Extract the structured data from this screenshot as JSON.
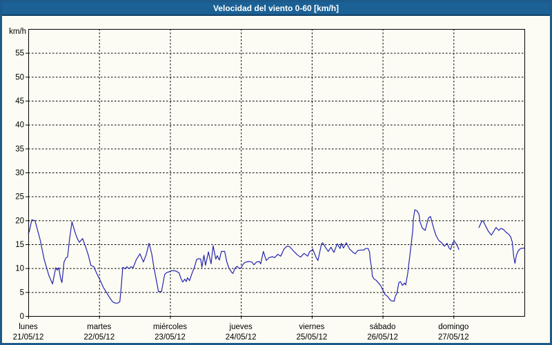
{
  "window": {
    "title": "Velocidad del viento 0-60 [km/h]"
  },
  "colors": {
    "frame_border": "#1d5a8a",
    "title_bg": "#1b6195",
    "title_text": "#ffffff",
    "background": "#fcfcf4",
    "grid": "#000000",
    "axis": "#000000",
    "line": "#2323b2"
  },
  "chart_data": {
    "type": "line",
    "title": "Velocidad del viento 0-60 [km/h]",
    "xlabel": "",
    "ylabel": "km/h",
    "ylim": [
      0,
      60
    ],
    "xlim_hours": [
      0,
      168
    ],
    "grid": "dashed",
    "legend_position": "none",
    "y_ticks": [
      0,
      5,
      10,
      15,
      20,
      25,
      30,
      35,
      40,
      45,
      50,
      55
    ],
    "x_ticks": [
      {
        "hour": 0,
        "day": "lunes",
        "date": "21/05/12"
      },
      {
        "hour": 24,
        "day": "martes",
        "date": "22/05/12"
      },
      {
        "hour": 48,
        "day": "miércoles",
        "date": "23/05/12"
      },
      {
        "hour": 72,
        "day": "jueves",
        "date": "24/05/12"
      },
      {
        "hour": 96,
        "day": "viernes",
        "date": "25/05/12"
      },
      {
        "hour": 120,
        "day": "sábado",
        "date": "26/05/12"
      },
      {
        "hour": 144,
        "day": "domingo",
        "date": "27/05/12"
      }
    ],
    "series": [
      {
        "name": "Velocidad del viento",
        "color": "#2323b2",
        "segments": [
          [
            [
              0,
              17.3
            ],
            [
              0.3,
              17.6
            ],
            [
              1.2,
              20.1
            ],
            [
              2.3,
              19.9
            ],
            [
              4,
              16
            ],
            [
              5.4,
              11.8
            ],
            [
              7,
              8.4
            ],
            [
              8.2,
              6.7
            ],
            [
              9.3,
              10.1
            ],
            [
              9.8,
              9.6
            ],
            [
              10.3,
              10.1
            ],
            [
              11,
              7.7
            ],
            [
              11.4,
              7
            ],
            [
              12.1,
              11.3
            ],
            [
              12.8,
              12.2
            ],
            [
              13.3,
              12.3
            ],
            [
              14,
              16.2
            ],
            [
              14.8,
              19.7
            ],
            [
              15.9,
              17.4
            ],
            [
              16.6,
              16.2
            ],
            [
              17.3,
              15.4
            ],
            [
              18.4,
              16.2
            ],
            [
              19.4,
              14.5
            ],
            [
              20.3,
              12.8
            ],
            [
              21.2,
              10.6
            ],
            [
              22.2,
              10.3
            ],
            [
              23.1,
              9
            ],
            [
              24,
              7.9
            ],
            [
              24.7,
              7
            ],
            [
              25.4,
              6
            ],
            [
              26.4,
              5
            ],
            [
              27.1,
              4.3
            ],
            [
              27.8,
              3.6
            ],
            [
              28.5,
              3
            ],
            [
              29.4,
              2.7
            ],
            [
              30.3,
              2.7
            ],
            [
              31,
              3
            ],
            [
              31.5,
              6.3
            ],
            [
              32,
              10.2
            ],
            [
              32.7,
              9.9
            ],
            [
              33.4,
              10.3
            ],
            [
              34.1,
              9.9
            ],
            [
              34.8,
              10.3
            ],
            [
              35.5,
              10.1
            ],
            [
              36.6,
              11.8
            ],
            [
              37.8,
              13
            ],
            [
              39,
              11.3
            ],
            [
              39.9,
              12.8
            ],
            [
              40.9,
              15.2
            ],
            [
              41.8,
              13
            ],
            [
              42.5,
              10.3
            ],
            [
              43.2,
              8
            ],
            [
              44.1,
              5.1
            ],
            [
              45.1,
              5.1
            ],
            [
              45.8,
              7.4
            ],
            [
              46.2,
              8.7
            ],
            [
              46.9,
              9.1
            ],
            [
              48,
              9.3
            ],
            [
              48.8,
              9.5
            ],
            [
              50,
              9.4
            ],
            [
              51.1,
              9
            ],
            [
              51.6,
              8
            ],
            [
              52.3,
              7.1
            ],
            [
              53,
              7.7
            ],
            [
              53.5,
              7.2
            ],
            [
              53.9,
              8
            ],
            [
              54.6,
              7.4
            ],
            [
              55.3,
              8.7
            ],
            [
              56.3,
              10.3
            ],
            [
              57,
              11.8
            ],
            [
              57.7,
              12
            ],
            [
              58.4,
              11.9
            ],
            [
              58.8,
              10.2
            ],
            [
              59.5,
              12.7
            ],
            [
              60,
              10.6
            ],
            [
              61,
              13.4
            ],
            [
              61.9,
              10.9
            ],
            [
              62.6,
              14.7
            ],
            [
              63.5,
              11.9
            ],
            [
              64,
              12.6
            ],
            [
              64.7,
              11.7
            ],
            [
              65.4,
              13.5
            ],
            [
              66.5,
              13.5
            ],
            [
              67.2,
              11.4
            ],
            [
              67.9,
              10.1
            ],
            [
              68.9,
              9.1
            ],
            [
              69.3,
              8.9
            ],
            [
              70,
              10
            ],
            [
              70.7,
              10.4
            ],
            [
              71.4,
              10
            ],
            [
              72,
              10
            ],
            [
              72.7,
              10.8
            ],
            [
              73.4,
              11.2
            ],
            [
              74.5,
              11.4
            ],
            [
              75.7,
              11.3
            ],
            [
              76.4,
              10.7
            ],
            [
              77.3,
              11.3
            ],
            [
              78.2,
              11.4
            ],
            [
              78.7,
              10.9
            ],
            [
              79.6,
              13.5
            ],
            [
              80.6,
              11.6
            ],
            [
              81.5,
              12.2
            ],
            [
              82.7,
              12.4
            ],
            [
              83.4,
              12.2
            ],
            [
              84.5,
              12.9
            ],
            [
              85.5,
              12.5
            ],
            [
              86.6,
              14
            ],
            [
              87.6,
              14.6
            ],
            [
              88.5,
              14.5
            ],
            [
              90.1,
              13.4
            ],
            [
              91.1,
              12.8
            ],
            [
              92.2,
              12.3
            ],
            [
              93.4,
              13.1
            ],
            [
              94.6,
              12.5
            ],
            [
              95.3,
              13.5
            ],
            [
              96,
              13.7
            ],
            [
              96.3,
              14
            ],
            [
              97.5,
              12.2
            ],
            [
              98.1,
              11.6
            ],
            [
              99.3,
              15.1
            ],
            [
              99.7,
              15.3
            ],
            [
              100.9,
              14.1
            ],
            [
              101.6,
              13.5
            ],
            [
              102.5,
              14.4
            ],
            [
              103.5,
              13.3
            ],
            [
              104.6,
              15.1
            ],
            [
              105.6,
              14.1
            ],
            [
              106,
              15.2
            ],
            [
              106.7,
              14.2
            ],
            [
              107.7,
              15.3
            ],
            [
              108.8,
              14
            ],
            [
              110,
              13.3
            ],
            [
              110.7,
              13
            ],
            [
              111.6,
              13.7
            ],
            [
              112.8,
              13.8
            ],
            [
              113.7,
              13.8
            ],
            [
              114.2,
              14.1
            ],
            [
              115.1,
              14.1
            ],
            [
              115.6,
              13.3
            ],
            [
              115.8,
              11.7
            ],
            [
              116.3,
              10
            ],
            [
              116.5,
              8.4
            ],
            [
              117,
              7.8
            ],
            [
              117.9,
              7.4
            ],
            [
              118.6,
              6.9
            ],
            [
              119.3,
              6.4
            ],
            [
              120,
              5.5
            ],
            [
              120.8,
              4.5
            ],
            [
              121.7,
              4.1
            ],
            [
              122.2,
              3.6
            ],
            [
              122.9,
              3.2
            ],
            [
              123.9,
              3.1
            ],
            [
              124.3,
              4.2
            ],
            [
              124.8,
              4.7
            ],
            [
              125.5,
              7
            ],
            [
              126,
              7.2
            ],
            [
              126.7,
              6.4
            ],
            [
              127.4,
              6.9
            ],
            [
              127.8,
              6.5
            ],
            [
              128.5,
              8.9
            ],
            [
              129,
              11.6
            ],
            [
              129.7,
              15.2
            ],
            [
              130.2,
              17.9
            ],
            [
              130.4,
              20.3
            ],
            [
              130.9,
              22.2
            ],
            [
              131.6,
              22
            ],
            [
              132.3,
              21.3
            ],
            [
              132.7,
              19.6
            ],
            [
              133.4,
              18.4
            ],
            [
              134.4,
              17.9
            ],
            [
              135.5,
              20.5
            ],
            [
              136.2,
              20.8
            ],
            [
              137.4,
              18.1
            ],
            [
              138.1,
              16.8
            ],
            [
              139,
              15.8
            ],
            [
              140,
              15.3
            ],
            [
              140.9,
              14.6
            ],
            [
              141.8,
              15.2
            ],
            [
              142.5,
              14.2
            ],
            [
              143,
              13.9
            ],
            [
              143.7,
              15.3
            ],
            [
              144,
              15.4
            ],
            [
              144.2,
              15.7
            ],
            [
              144.9,
              15.1
            ],
            [
              145.4,
              14.5
            ],
            [
              145.8,
              13.9
            ]
          ],
          [
            [
              152.6,
              18.5
            ],
            [
              153.5,
              19.7
            ],
            [
              154,
              19.9
            ],
            [
              154.9,
              18.8
            ],
            [
              155.8,
              17.7
            ],
            [
              156.8,
              16.9
            ],
            [
              158.2,
              18.3
            ],
            [
              158.4,
              18.5
            ],
            [
              159.3,
              17.9
            ],
            [
              160,
              18.3
            ],
            [
              160.9,
              18.1
            ],
            [
              161.8,
              17.5
            ],
            [
              162.7,
              17.1
            ],
            [
              163.4,
              16.5
            ],
            [
              163.9,
              15.4
            ],
            [
              164.4,
              12.3
            ],
            [
              164.8,
              11
            ],
            [
              165.3,
              12.7
            ],
            [
              166,
              13.7
            ],
            [
              166.7,
              14.1
            ],
            [
              167.9,
              14.2
            ]
          ]
        ]
      }
    ]
  }
}
